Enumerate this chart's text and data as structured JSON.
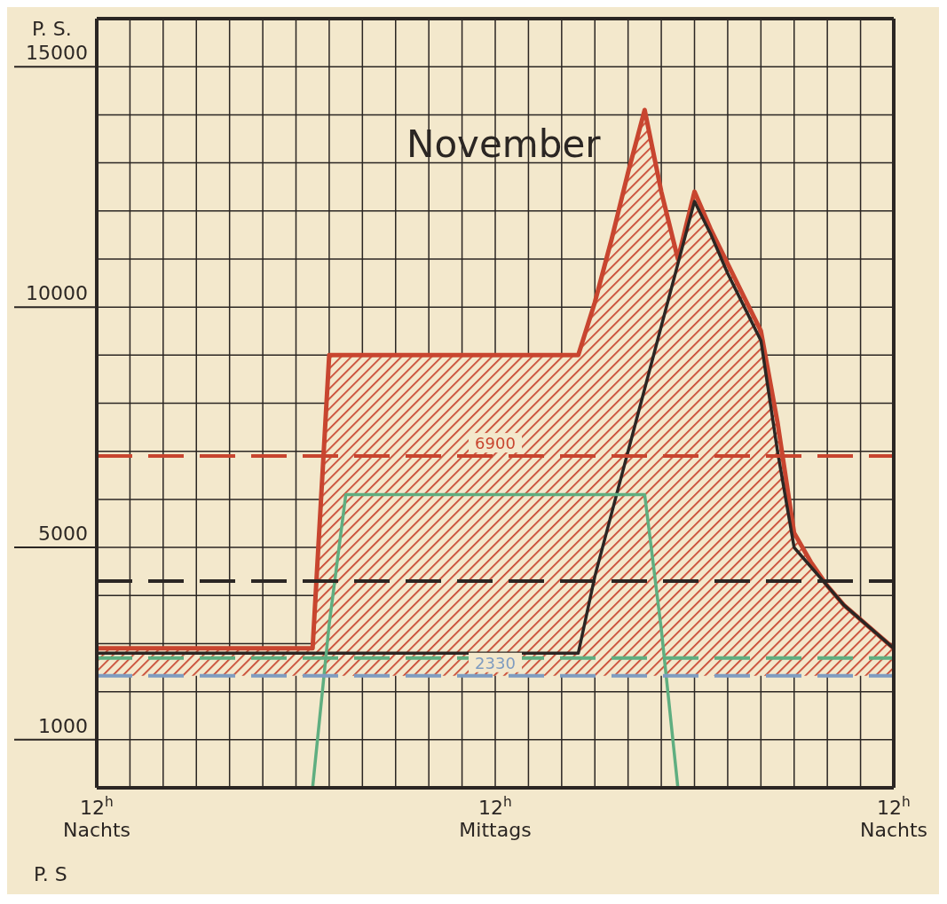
{
  "chart_data": {
    "type": "line",
    "title": "November",
    "ylabel": "P. S.",
    "categories": [
      "12$^{h}$ Nachts",
      null,
      null,
      null,
      null,
      null,
      null,
      null,
      null,
      null,
      null,
      null,
      null,
      null,
      null,
      null,
      null,
      null,
      null,
      null,
      null,
      null,
      null,
      null,
      "12$^{h}$ Mittags",
      null,
      null,
      null,
      null,
      null,
      null,
      null,
      null,
      null,
      null,
      null,
      null,
      null,
      null,
      null,
      null,
      null,
      null,
      null,
      null,
      null,
      null,
      null,
      "12$^{h}$ Nachts"
    ],
    "ylim": [
      0,
      16000
    ],
    "yticks": [
      1000,
      {
        "value": 2000,
        "label": null
      },
      {
        "value": 3000,
        "label": null
      },
      {
        "value": 4000,
        "label": null
      },
      5000,
      {
        "value": 6000,
        "label": null
      },
      {
        "value": 7000,
        "label": null
      },
      {
        "value": 8000,
        "label": null
      },
      {
        "value": 9000,
        "label": null
      },
      10000,
      {
        "value": 11000,
        "label": null
      },
      {
        "value": 12000,
        "label": null
      },
      {
        "value": 13000,
        "label": null
      },
      {
        "value": 14000,
        "label": null
      },
      15000
    ],
    "grid": true,
    "series": [
      {
        "type": "area",
        "color": "#c8452f",
        "values": [
          2900,
          2900,
          2900,
          2900,
          2900,
          2900,
          2900,
          2900,
          2900,
          2900,
          2900,
          2900,
          2900,
          2900,
          9000,
          9000,
          9000,
          9000,
          9000,
          9000,
          9000,
          9000,
          9000,
          9000,
          9000,
          9000,
          9000,
          9000,
          9000,
          9000,
          10100,
          11400,
          12800,
          14100,
          12400,
          11000,
          12400,
          11600,
          10900,
          10200,
          9500,
          7600,
          5300,
          4700,
          4200,
          3800,
          3500,
          3200,
          2900
        ]
      },
      {
        "color": "#2b2623",
        "values": [
          2800,
          2800,
          2800,
          2800,
          2800,
          2800,
          2800,
          2800,
          2800,
          2800,
          2800,
          2800,
          2800,
          2800,
          2800,
          2800,
          2800,
          2800,
          2800,
          2800,
          2800,
          2800,
          2800,
          2800,
          2800,
          2800,
          2800,
          2800,
          2800,
          2800,
          4400,
          5700,
          7000,
          8300,
          9600,
          10900,
          12200,
          11500,
          10700,
          10000,
          9300,
          7000,
          5000,
          4600,
          4200,
          3800,
          3500,
          3200,
          2900
        ]
      },
      {
        "color": "#5fae80",
        "values": [
          null,
          null,
          null,
          null,
          null,
          null,
          null,
          null,
          null,
          null,
          null,
          null,
          null,
          0,
          3400,
          6100,
          6100,
          6100,
          6100,
          6100,
          6100,
          6100,
          6100,
          6100,
          6100,
          6100,
          6100,
          6100,
          6100,
          6100,
          6100,
          6100,
          6100,
          6100,
          3300,
          0,
          null,
          null,
          null,
          null,
          null,
          null,
          null,
          null,
          null,
          null,
          null,
          null,
          null
        ]
      }
    ],
    "ref_lines": [
      {
        "axis": "y",
        "value": 6900,
        "label": "6900",
        "color": "#c8452f",
        "line_style": "dashed"
      },
      {
        "axis": "y",
        "value": 4300,
        "color": "#2b2623",
        "line_style": "dashed"
      },
      {
        "axis": "y",
        "value": 2700,
        "color": "#5fae80",
        "line_style": "dashed"
      },
      {
        "axis": "y",
        "value": 2330,
        "label": "2330",
        "color": "#7f9cc0",
        "line_style": "dashed"
      }
    ],
    "annotations": [
      "P. S"
    ]
  }
}
